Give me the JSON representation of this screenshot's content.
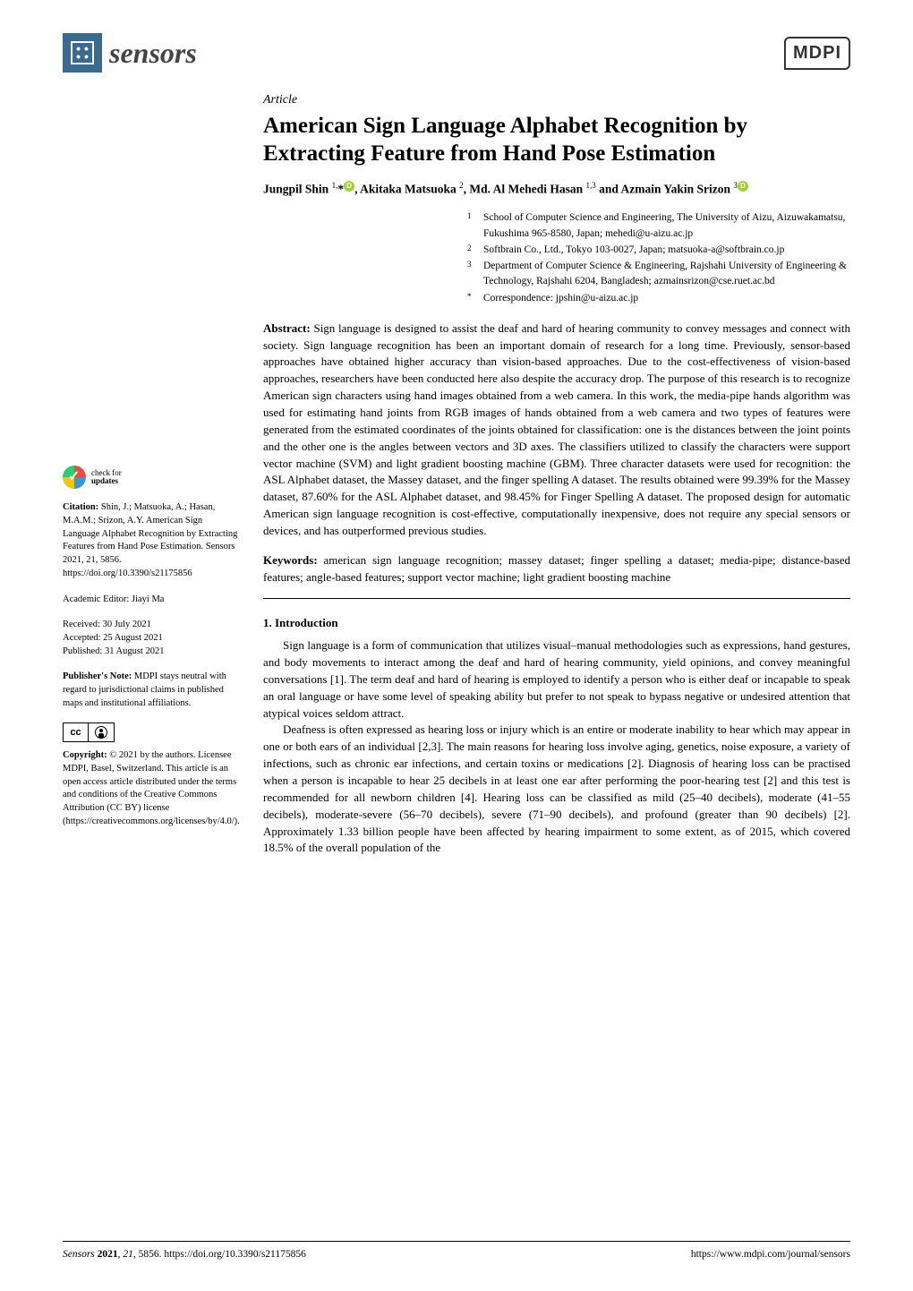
{
  "header": {
    "journal_name": "sensors",
    "publisher_logo": "MDPI"
  },
  "article": {
    "type": "Article",
    "title": "American Sign Language Alphabet Recognition by Extracting Feature from Hand Pose Estimation",
    "authors_html": "Jungpil Shin <sup>1,</sup>*, Akitaka Matsuoka <sup>2</sup>, Md. Al Mehedi Hasan <sup>1,3</sup> and Azmain Yakin Srizon <sup>3</sup>"
  },
  "affiliations": [
    {
      "num": "1",
      "text": "School of Computer Science and Engineering, The University of Aizu, Aizuwakamatsu, Fukushima 965-8580, Japan; mehedi@u-aizu.ac.jp"
    },
    {
      "num": "2",
      "text": "Softbrain Co., Ltd., Tokyo 103-0027, Japan; matsuoka-a@softbrain.co.jp"
    },
    {
      "num": "3",
      "text": "Department of Computer Science & Engineering, Rajshahi University of Engineering & Technology, Rajshahi 6204, Bangladesh; azmainsrizon@cse.ruet.ac.bd"
    },
    {
      "num": "*",
      "text": "Correspondence: jpshin@u-aizu.ac.jp"
    }
  ],
  "abstract": {
    "label": "Abstract:",
    "text": "Sign language is designed to assist the deaf and hard of hearing community to convey messages and connect with society. Sign language recognition has been an important domain of research for a long time. Previously, sensor-based approaches have obtained higher accuracy than vision-based approaches. Due to the cost-effectiveness of vision-based approaches, researchers have been conducted here also despite the accuracy drop. The purpose of this research is to recognize American sign characters using hand images obtained from a web camera. In this work, the media-pipe hands algorithm was used for estimating hand joints from RGB images of hands obtained from a web camera and two types of features were generated from the estimated coordinates of the joints obtained for classification: one is the distances between the joint points and the other one is the angles between vectors and 3D axes. The classifiers utilized to classify the characters were support vector machine (SVM) and light gradient boosting machine (GBM). Three character datasets were used for recognition: the ASL Alphabet dataset, the Massey dataset, and the finger spelling A dataset. The results obtained were 99.39% for the Massey dataset, 87.60% for the ASL Alphabet dataset, and 98.45% for Finger Spelling A dataset. The proposed design for automatic American sign language recognition is cost-effective, computationally inexpensive, does not require any special sensors or devices, and has outperformed previous studies."
  },
  "keywords": {
    "label": "Keywords:",
    "text": "american sign language recognition; massey dataset; finger spelling a dataset; media-pipe; distance-based features; angle-based features; support vector machine; light gradient boosting machine"
  },
  "section1": {
    "heading": "1. Introduction",
    "p1": "Sign language is a form of communication that utilizes visual–manual methodologies such as expressions, hand gestures, and body movements to interact among the deaf and hard of hearing community, yield opinions, and convey meaningful conversations [1]. The term deaf and hard of hearing is employed to identify a person who is either deaf or incapable to speak an oral language or have some level of speaking ability but prefer to not speak to bypass negative or undesired attention that atypical voices seldom attract.",
    "p2": "Deafness is often expressed as hearing loss or injury which is an entire or moderate inability to hear which may appear in one or both ears of an individual [2,3]. The main reasons for hearing loss involve aging, genetics, noise exposure, a variety of infections, such as chronic ear infections, and certain toxins or medications [2]. Diagnosis of hearing loss can be practised when a person is incapable to hear 25 decibels in at least one ear after performing the poor-hearing test [2] and this test is recommended for all newborn children [4]. Hearing loss can be classified as mild (25–40 decibels), moderate (41–55 decibels), moderate-severe (56–70 decibels), severe (71–90 decibels), and profound (greater than 90 decibels) [2]. Approximately 1.33 billion people have been affected by hearing impairment to some extent, as of 2015, which covered 18.5% of the overall population of the"
  },
  "sidebar": {
    "check_updates": "check for\nupdates",
    "citation_label": "Citation:",
    "citation": "Shin, J.; Matsuoka, A.; Hasan, M.A.M.; Srizon, A.Y. American Sign Language Alphabet Recognition by Extracting Features from Hand Pose Estimation. Sensors 2021, 21, 5856. https://doi.org/10.3390/s21175856",
    "editor_label": "Academic Editor:",
    "editor": "Jiayi Ma",
    "received": "Received: 30 July 2021",
    "accepted": "Accepted: 25 August 2021",
    "published": "Published: 31 August 2021",
    "pubnote_label": "Publisher's Note:",
    "pubnote": "MDPI stays neutral with regard to jurisdictional claims in published maps and institutional affiliations.",
    "copyright_label": "Copyright:",
    "copyright": "© 2021 by the authors. Licensee MDPI, Basel, Switzerland. This article is an open access article distributed under the terms and conditions of the Creative Commons Attribution (CC BY) license (https://creativecommons.org/licenses/by/4.0/)."
  },
  "footer": {
    "left": "Sensors 2021, 21, 5856. https://doi.org/10.3390/s21175856",
    "right": "https://www.mdpi.com/journal/sensors"
  },
  "colors": {
    "link": "#0066aa",
    "logo_bg": "#3a6a8e",
    "orcid": "#a6ce39"
  }
}
